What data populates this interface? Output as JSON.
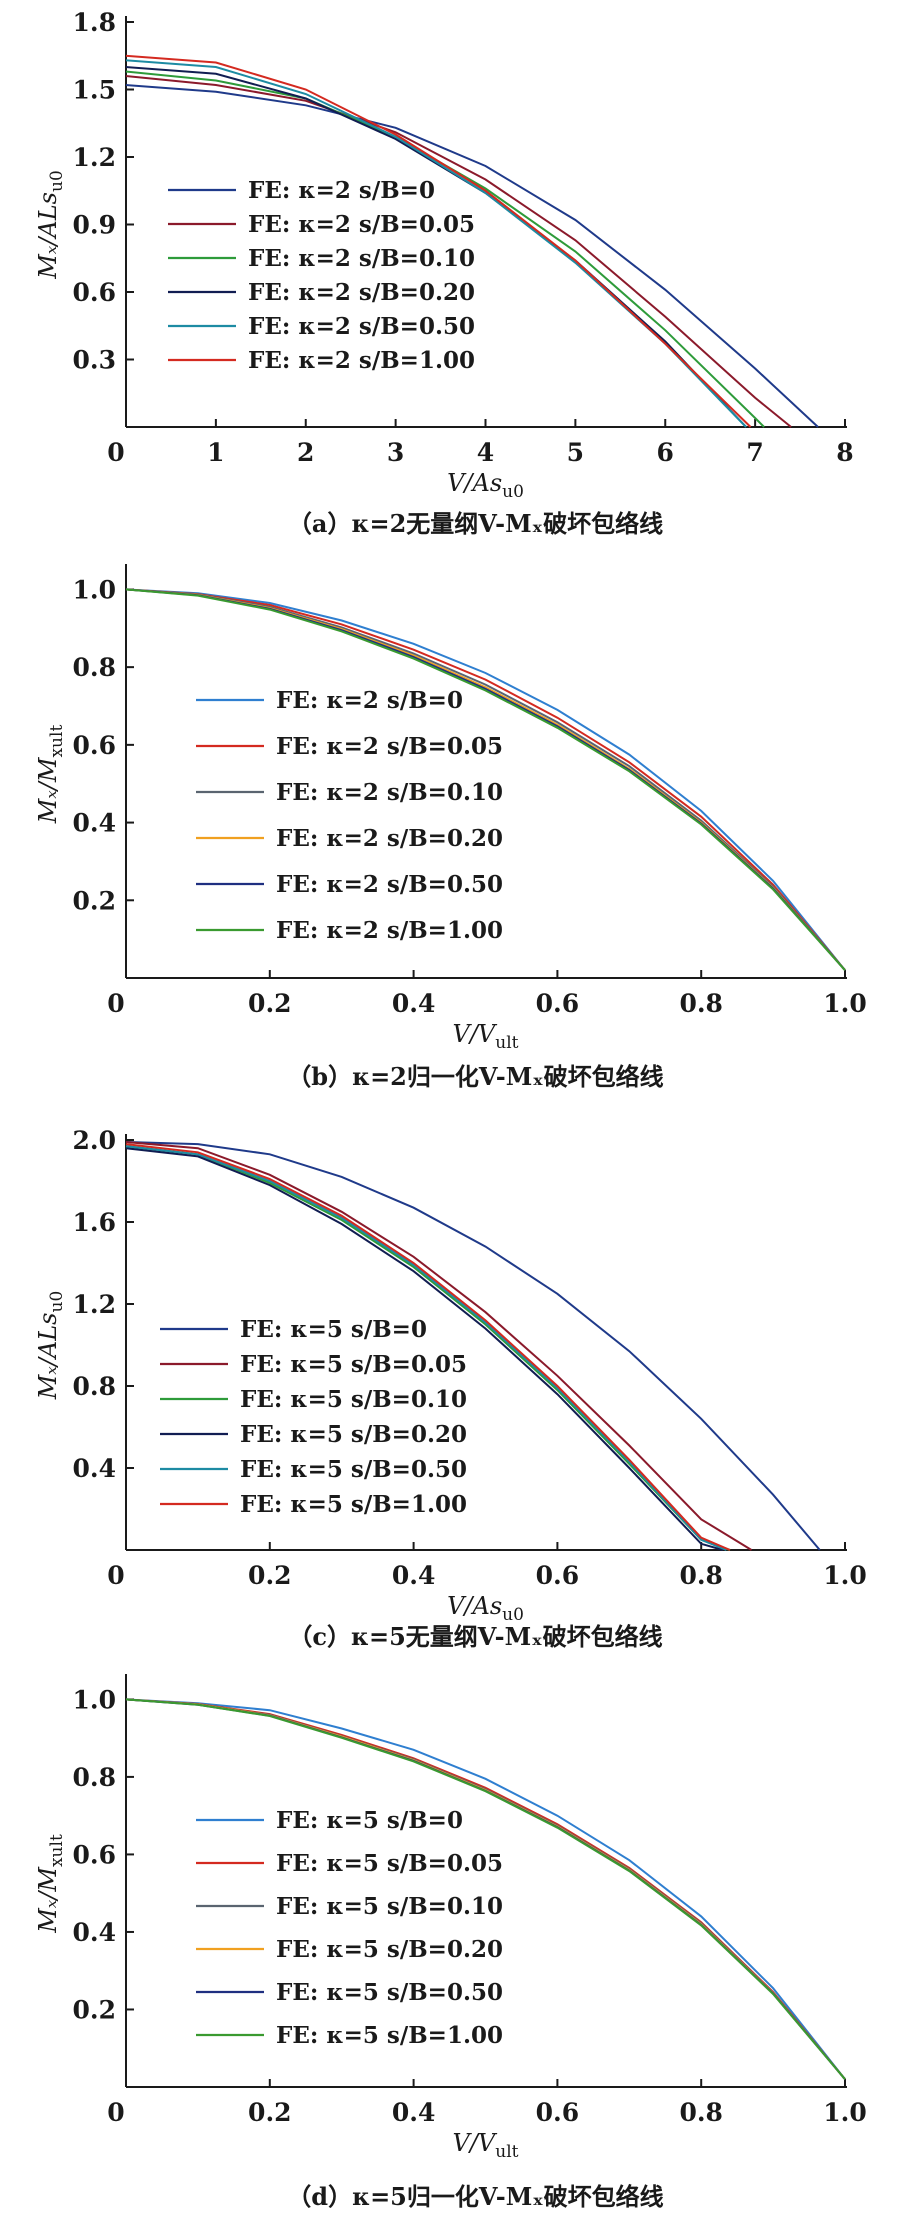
{
  "chart_data": [
    {
      "type": "line",
      "caption": "（a）κ=2无量纲V-Mₓ破坏包络线",
      "xlabel": "V/As",
      "xlabel_sub": "u0",
      "ylabel": "Mₓ/ALs",
      "ylabel_sub": "u0",
      "xlim": [
        0,
        8
      ],
      "ylim": [
        0,
        1.8
      ],
      "xticks": [
        "0",
        "1",
        "2",
        "3",
        "4",
        "5",
        "6",
        "7",
        "8"
      ],
      "yticks": [
        "0.3",
        "0.6",
        "0.9",
        "1.2",
        "1.5",
        "1.8"
      ],
      "legend_position": "middle-left",
      "series": [
        {
          "name": "FE: κ=2 s/B=0",
          "color": "#1f3a8a",
          "x": [
            0,
            1,
            2,
            3,
            4,
            5,
            6,
            7,
            7.7
          ],
          "y": [
            1.52,
            1.49,
            1.43,
            1.33,
            1.16,
            0.92,
            0.61,
            0.26,
            0
          ]
        },
        {
          "name": "FE: κ=2 s/B=0.05",
          "color": "#8b1a2b",
          "x": [
            0,
            1,
            2,
            3,
            4,
            5,
            6,
            7,
            7.4
          ],
          "y": [
            1.56,
            1.52,
            1.45,
            1.31,
            1.1,
            0.83,
            0.49,
            0.13,
            0
          ]
        },
        {
          "name": "FE: κ=2 s/B=0.10",
          "color": "#2e9b3a",
          "x": [
            0,
            1,
            2,
            3,
            4,
            5,
            6,
            7,
            7.1
          ],
          "y": [
            1.58,
            1.54,
            1.46,
            1.29,
            1.06,
            0.78,
            0.43,
            0.04,
            0
          ]
        },
        {
          "name": "FE: κ=2 s/B=0.20",
          "color": "#111d52",
          "x": [
            0,
            1,
            2,
            3,
            4,
            5,
            6,
            6.9
          ],
          "y": [
            1.6,
            1.57,
            1.46,
            1.28,
            1.04,
            0.74,
            0.38,
            0
          ]
        },
        {
          "name": "FE: κ=2 s/B=0.50",
          "color": "#1d8ba3",
          "x": [
            0,
            1,
            2,
            3,
            4,
            5,
            6,
            6.9
          ],
          "y": [
            1.63,
            1.6,
            1.48,
            1.29,
            1.04,
            0.73,
            0.37,
            0
          ]
        },
        {
          "name": "FE: κ=2 s/B=1.00",
          "color": "#d42a20",
          "x": [
            0,
            1,
            2,
            3,
            4,
            5,
            6,
            6.95
          ],
          "y": [
            1.65,
            1.62,
            1.5,
            1.3,
            1.05,
            0.74,
            0.37,
            0
          ]
        }
      ]
    },
    {
      "type": "line",
      "caption": "（b）κ=2归一化V-Mₓ破坏包络线",
      "xlabel": "V/V",
      "xlabel_sub": "ult",
      "ylabel": "Mₓ/M",
      "ylabel_sub": "xult",
      "xlim": [
        0,
        1
      ],
      "ylim": [
        0,
        1.05
      ],
      "xticks": [
        "0",
        "0.2",
        "0.4",
        "0.6",
        "0.8",
        "1.0"
      ],
      "yticks": [
        "0.2",
        "0.4",
        "0.6",
        "0.8",
        "1.0"
      ],
      "legend_position": "middle-left",
      "series": [
        {
          "name": "FE: κ=2 s/B=0",
          "color": "#2f7fd0",
          "x": [
            0,
            0.1,
            0.2,
            0.3,
            0.4,
            0.5,
            0.6,
            0.7,
            0.8,
            0.9,
            1.0
          ],
          "y": [
            1.0,
            0.99,
            0.965,
            0.92,
            0.86,
            0.785,
            0.69,
            0.575,
            0.43,
            0.25,
            0.02
          ]
        },
        {
          "name": "FE: κ=2 s/B=0.05",
          "color": "#d42a20",
          "x": [
            0,
            0.1,
            0.2,
            0.3,
            0.4,
            0.5,
            0.6,
            0.7,
            0.8,
            0.9,
            1.0
          ],
          "y": [
            1.0,
            0.988,
            0.96,
            0.91,
            0.845,
            0.768,
            0.67,
            0.555,
            0.415,
            0.24,
            0.02
          ]
        },
        {
          "name": "FE: κ=2 s/B=0.10",
          "color": "#5a6470",
          "x": [
            0,
            0.1,
            0.2,
            0.3,
            0.4,
            0.5,
            0.6,
            0.7,
            0.8,
            0.9,
            1.0
          ],
          "y": [
            1.0,
            0.987,
            0.955,
            0.902,
            0.835,
            0.755,
            0.658,
            0.545,
            0.405,
            0.235,
            0.02
          ]
        },
        {
          "name": "FE: κ=2 s/B=0.20",
          "color": "#f0a020",
          "x": [
            0,
            0.1,
            0.2,
            0.3,
            0.4,
            0.5,
            0.6,
            0.7,
            0.8,
            0.9,
            1.0
          ],
          "y": [
            1.0,
            0.986,
            0.952,
            0.898,
            0.83,
            0.748,
            0.652,
            0.538,
            0.4,
            0.232,
            0.02
          ]
        },
        {
          "name": "FE: κ=2 s/B=0.50",
          "color": "#1f2f80",
          "x": [
            0,
            0.1,
            0.2,
            0.3,
            0.4,
            0.5,
            0.6,
            0.7,
            0.8,
            0.9,
            1.0
          ],
          "y": [
            1.0,
            0.985,
            0.95,
            0.895,
            0.826,
            0.744,
            0.648,
            0.535,
            0.397,
            0.23,
            0.02
          ]
        },
        {
          "name": "FE: κ=2 s/B=1.00",
          "color": "#3a9a30",
          "x": [
            0,
            0.1,
            0.2,
            0.3,
            0.4,
            0.5,
            0.6,
            0.7,
            0.8,
            0.9,
            1.0
          ],
          "y": [
            1.0,
            0.984,
            0.948,
            0.892,
            0.822,
            0.74,
            0.644,
            0.532,
            0.395,
            0.228,
            0.02
          ]
        }
      ]
    },
    {
      "type": "line",
      "caption": "（c）κ=5无量纲V-Mₓ破坏包络线",
      "xlabel": "V/As",
      "xlabel_sub": "u0",
      "ylabel": "Mₓ/ALs",
      "ylabel_sub": "u0",
      "xlim": [
        0,
        1
      ],
      "ylim": [
        0,
        2.0
      ],
      "xticks": [
        "0",
        "0.2",
        "0.4",
        "0.6",
        "0.8",
        "1.0"
      ],
      "yticks": [
        "0.4",
        "0.8",
        "1.2",
        "1.6",
        "2.0"
      ],
      "legend_position": "middle-left",
      "series": [
        {
          "name": "FE: κ=5 s/B=0",
          "color": "#1f3a8a",
          "x": [
            0,
            0.1,
            0.2,
            0.3,
            0.4,
            0.5,
            0.6,
            0.7,
            0.8,
            0.9,
            0.965
          ],
          "y": [
            1.99,
            1.98,
            1.93,
            1.82,
            1.67,
            1.48,
            1.25,
            0.97,
            0.64,
            0.27,
            0
          ]
        },
        {
          "name": "FE: κ=5 s/B=0.05",
          "color": "#8b1a2b",
          "x": [
            0,
            0.1,
            0.2,
            0.3,
            0.4,
            0.5,
            0.6,
            0.7,
            0.8,
            0.87
          ],
          "y": [
            1.99,
            1.96,
            1.83,
            1.65,
            1.43,
            1.16,
            0.85,
            0.51,
            0.15,
            0
          ]
        },
        {
          "name": "FE: κ=5 s/B=0.10",
          "color": "#2e9b3a",
          "x": [
            0,
            0.1,
            0.2,
            0.3,
            0.4,
            0.5,
            0.6,
            0.7,
            0.8,
            0.84
          ],
          "y": [
            1.97,
            1.93,
            1.79,
            1.61,
            1.38,
            1.1,
            0.78,
            0.42,
            0.05,
            0
          ]
        },
        {
          "name": "FE: κ=5 s/B=0.20",
          "color": "#111d52",
          "x": [
            0,
            0.1,
            0.2,
            0.3,
            0.4,
            0.5,
            0.6,
            0.7,
            0.8,
            0.83
          ],
          "y": [
            1.96,
            1.92,
            1.78,
            1.59,
            1.36,
            1.08,
            0.76,
            0.4,
            0.03,
            0
          ]
        },
        {
          "name": "FE: κ=5 s/B=0.50",
          "color": "#1d8ba3",
          "x": [
            0,
            0.1,
            0.2,
            0.3,
            0.4,
            0.5,
            0.6,
            0.7,
            0.8,
            0.835
          ],
          "y": [
            1.97,
            1.93,
            1.8,
            1.62,
            1.39,
            1.11,
            0.79,
            0.43,
            0.05,
            0
          ]
        },
        {
          "name": "FE: κ=5 s/B=1.00",
          "color": "#d42a20",
          "x": [
            0,
            0.1,
            0.2,
            0.3,
            0.4,
            0.5,
            0.6,
            0.7,
            0.8,
            0.84
          ],
          "y": [
            1.98,
            1.94,
            1.81,
            1.63,
            1.4,
            1.12,
            0.8,
            0.44,
            0.06,
            0
          ]
        }
      ]
    },
    {
      "type": "line",
      "caption": "（d）κ=5归一化V-Mₓ破坏包络线",
      "xlabel": "V/V",
      "xlabel_sub": "ult",
      "ylabel": "Mₓ/M",
      "ylabel_sub": "xult",
      "xlim": [
        0,
        1
      ],
      "ylim": [
        0,
        1.05
      ],
      "xticks": [
        "0",
        "0.2",
        "0.4",
        "0.6",
        "0.8",
        "1.0"
      ],
      "yticks": [
        "0.2",
        "0.4",
        "0.6",
        "0.8",
        "1.0"
      ],
      "legend_position": "middle-left",
      "series": [
        {
          "name": "FE: κ=5 s/B=0",
          "color": "#2f7fd0",
          "x": [
            0,
            0.1,
            0.2,
            0.3,
            0.4,
            0.5,
            0.6,
            0.7,
            0.8,
            0.9,
            1.0
          ],
          "y": [
            1.0,
            0.99,
            0.972,
            0.925,
            0.87,
            0.795,
            0.7,
            0.585,
            0.44,
            0.255,
            0.02
          ]
        },
        {
          "name": "FE: κ=5 s/B=0.05",
          "color": "#d42a20",
          "x": [
            0,
            0.1,
            0.2,
            0.3,
            0.4,
            0.5,
            0.6,
            0.7,
            0.8,
            0.9,
            1.0
          ],
          "y": [
            1.0,
            0.988,
            0.962,
            0.908,
            0.848,
            0.772,
            0.678,
            0.565,
            0.425,
            0.245,
            0.02
          ]
        },
        {
          "name": "FE: κ=5 s/B=0.10",
          "color": "#5a6470",
          "x": [
            0,
            0.1,
            0.2,
            0.3,
            0.4,
            0.5,
            0.6,
            0.7,
            0.8,
            0.9,
            1.0
          ],
          "y": [
            1.0,
            0.987,
            0.96,
            0.905,
            0.845,
            0.768,
            0.674,
            0.562,
            0.422,
            0.243,
            0.02
          ]
        },
        {
          "name": "FE: κ=5 s/B=0.20",
          "color": "#f0a020",
          "x": [
            0,
            0.1,
            0.2,
            0.3,
            0.4,
            0.5,
            0.6,
            0.7,
            0.8,
            0.9,
            1.0
          ],
          "y": [
            1.0,
            0.987,
            0.959,
            0.904,
            0.843,
            0.766,
            0.672,
            0.56,
            0.42,
            0.242,
            0.02
          ]
        },
        {
          "name": "FE: κ=5 s/B=0.50",
          "color": "#1f2f80",
          "x": [
            0,
            0.1,
            0.2,
            0.3,
            0.4,
            0.5,
            0.6,
            0.7,
            0.8,
            0.9,
            1.0
          ],
          "y": [
            1.0,
            0.986,
            0.958,
            0.902,
            0.841,
            0.764,
            0.67,
            0.558,
            0.418,
            0.241,
            0.02
          ]
        },
        {
          "name": "FE: κ=5 s/B=1.00",
          "color": "#3a9a30",
          "x": [
            0,
            0.1,
            0.2,
            0.3,
            0.4,
            0.5,
            0.6,
            0.7,
            0.8,
            0.9,
            1.0
          ],
          "y": [
            1.0,
            0.986,
            0.957,
            0.901,
            0.84,
            0.763,
            0.669,
            0.557,
            0.417,
            0.24,
            0.02
          ]
        }
      ]
    }
  ]
}
